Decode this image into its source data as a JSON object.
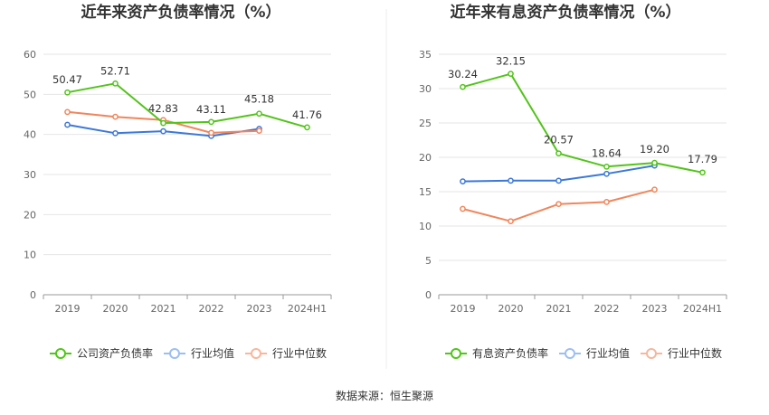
{
  "source": "数据来源：恒生聚源",
  "chart_data": [
    {
      "type": "line",
      "title": "近年来资产负债率情况（%）",
      "categories": [
        "2019",
        "2020",
        "2021",
        "2022",
        "2023",
        "2024H1"
      ],
      "ylim": [
        0,
        60
      ],
      "yticks": [
        0,
        10,
        20,
        30,
        40,
        50,
        60
      ],
      "grid": true,
      "legend_position": "bottom",
      "series": [
        {
          "name": "公司资产负债率",
          "color": "#52c41a",
          "values": [
            50.47,
            52.71,
            42.83,
            43.11,
            45.18,
            41.76
          ],
          "labels": [
            "50.47",
            "52.71",
            "42.83",
            "43.11",
            "45.18",
            "41.76"
          ]
        },
        {
          "name": "行业均值",
          "color": "#3c78d8",
          "values": [
            42.4,
            40.3,
            40.8,
            39.6,
            41.4,
            null
          ]
        },
        {
          "name": "行业中位数",
          "color": "#f0865c",
          "values": [
            45.6,
            44.4,
            43.6,
            40.4,
            40.9,
            null
          ]
        }
      ]
    },
    {
      "type": "line",
      "title": "近年来有息资产负债率情况（%）",
      "categories": [
        "2019",
        "2020",
        "2021",
        "2022",
        "2023",
        "2024H1"
      ],
      "ylim": [
        0,
        35
      ],
      "yticks": [
        0,
        5,
        10,
        15,
        20,
        25,
        30,
        35
      ],
      "grid": true,
      "legend_position": "bottom",
      "series": [
        {
          "name": "有息资产负债率",
          "color": "#52c41a",
          "values": [
            30.24,
            32.15,
            20.57,
            18.64,
            19.2,
            17.79
          ],
          "labels": [
            "30.24",
            "32.15",
            "20.57",
            "18.64",
            "19.20",
            "17.79"
          ]
        },
        {
          "name": "行业均值",
          "color": "#3c78d8",
          "values": [
            16.5,
            16.6,
            16.6,
            17.6,
            18.8,
            null
          ]
        },
        {
          "name": "行业中位数",
          "color": "#f0865c",
          "values": [
            12.5,
            10.7,
            13.2,
            13.5,
            15.3,
            null
          ]
        }
      ]
    }
  ]
}
